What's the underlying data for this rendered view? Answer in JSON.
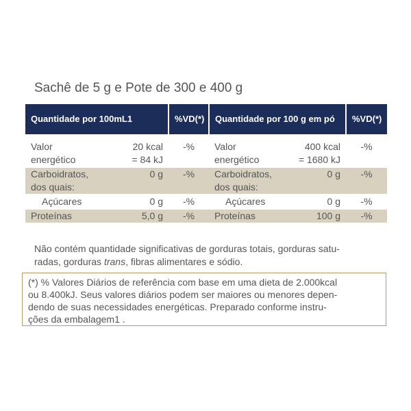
{
  "title": "Sachê de 5 g e Pote de 300 e 400 g",
  "table": {
    "header": [
      "Quantidade por 100mL1",
      "%VD(*)",
      "Quantidade por 100 g em pó",
      "%VD(*)"
    ],
    "rows": [
      [
        [
          "Valor",
          "energético"
        ],
        [
          "20 kcal",
          "= 84 kJ"
        ],
        [
          "-%"
        ],
        [
          "Valor",
          "energético"
        ],
        [
          "400 kcal",
          "= 1680 kJ"
        ],
        [
          "-%"
        ]
      ],
      [
        [
          "Carboidratos,",
          "dos quais:"
        ],
        [
          "0 g"
        ],
        [
          "-%"
        ],
        [
          "Carboidratos,",
          "dos quais:"
        ],
        [
          "0 g"
        ],
        [
          "-%"
        ]
      ],
      [
        [
          "Açúcares"
        ],
        [
          "0 g"
        ],
        [
          "-%"
        ],
        [
          "Açúcares"
        ],
        [
          "0 g"
        ],
        [
          "-%"
        ]
      ],
      [
        [
          "Proteínas"
        ],
        [
          "5,0 g"
        ],
        [
          "-%"
        ],
        [
          "Proteínas"
        ],
        [
          "100 g"
        ],
        [
          "-%"
        ]
      ]
    ]
  },
  "note": {
    "line1": "Não contém quantidade significativas de gorduras totais, gorduras satu-",
    "line2": [
      "radas, gorduras ",
      "trans",
      ", fibras alimentares e sódio."
    ]
  },
  "footnote": [
    "(*) % Valores Diários de referência com base em uma dieta de 2.000kcal",
    "ou 8.400kJ. Seus valores diários podem ser maiores ou menores depen-",
    "dendo de suas necessidades energéticas. Preparado conforme instru-",
    "ções da embalagem1 ."
  ]
}
